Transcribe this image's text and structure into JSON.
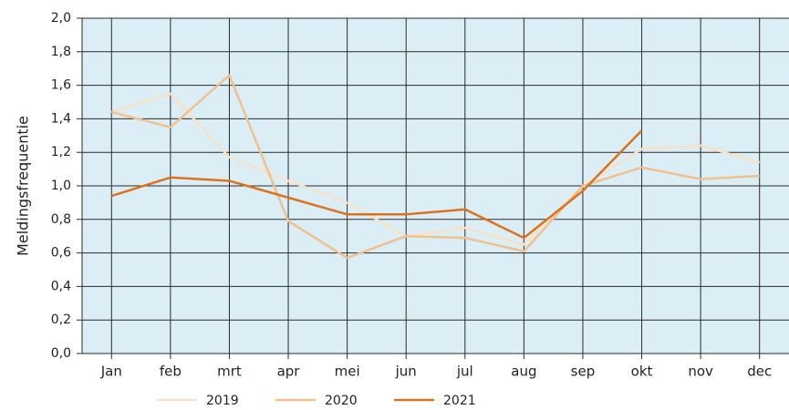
{
  "chart_data": {
    "type": "line",
    "y_label": "Meldingsfrequentie",
    "categories": [
      "Jan",
      "feb",
      "mrt",
      "apr",
      "mei",
      "jun",
      "jul",
      "aug",
      "sep",
      "okt",
      "nov",
      "dec"
    ],
    "series": [
      {
        "name": "2019",
        "color": "#f7e2c8",
        "values": [
          1.44,
          1.55,
          1.17,
          1.03,
          0.9,
          0.7,
          0.75,
          0.65,
          1.0,
          1.22,
          1.24,
          1.14
        ]
      },
      {
        "name": "2020",
        "color": "#f0c18f",
        "values": [
          1.44,
          1.35,
          1.66,
          0.79,
          0.57,
          0.7,
          0.69,
          0.61,
          1.0,
          1.11,
          1.04,
          1.06
        ]
      },
      {
        "name": "2021",
        "color": "#d9731f",
        "values": [
          0.94,
          1.05,
          1.03,
          0.93,
          0.83,
          0.83,
          0.86,
          0.69,
          0.97,
          1.33,
          null,
          null
        ]
      }
    ],
    "ylim": [
      0,
      2
    ],
    "yticks": [
      {
        "value": 0,
        "label": "0,0"
      },
      {
        "value": 0.2,
        "label": "0,2"
      },
      {
        "value": 0.4,
        "label": "0,4"
      },
      {
        "value": 0.6,
        "label": "0,6"
      },
      {
        "value": 0.8,
        "label": "0,8"
      },
      {
        "value": 1,
        "label": "1,0"
      },
      {
        "value": 1.2,
        "label": "1,2"
      },
      {
        "value": 1.4,
        "label": "1,4"
      },
      {
        "value": 1.6,
        "label": "1,6"
      },
      {
        "value": 1.8,
        "label": "1,8"
      },
      {
        "value": 2,
        "label": "2,0"
      }
    ],
    "grid": true
  }
}
